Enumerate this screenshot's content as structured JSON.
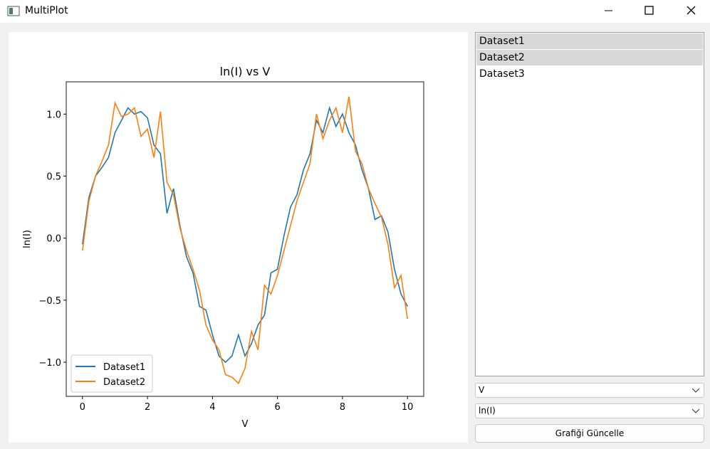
{
  "window": {
    "title": "MultiPlot"
  },
  "chart_data": {
    "type": "line",
    "title": "ln(I) vs V",
    "xlabel": "V",
    "ylabel": "ln(I)",
    "x": [
      0,
      0.2,
      0.4,
      0.6,
      0.8,
      1.0,
      1.2,
      1.4,
      1.6,
      1.8,
      2.0,
      2.2,
      2.4,
      2.6,
      2.8,
      3.0,
      3.2,
      3.4,
      3.6,
      3.8,
      4.0,
      4.2,
      4.4,
      4.6,
      4.8,
      5.0,
      5.2,
      5.4,
      5.6,
      5.8,
      6.0,
      6.2,
      6.4,
      6.6,
      6.8,
      7.0,
      7.2,
      7.4,
      7.6,
      7.8,
      8.0,
      8.2,
      8.4,
      8.6,
      8.8,
      9.0,
      9.2,
      9.4,
      9.6,
      9.8,
      10.0
    ],
    "series": [
      {
        "name": "Dataset1",
        "color": "#1f77b4",
        "values": [
          -0.05,
          0.33,
          0.5,
          0.57,
          0.65,
          0.85,
          0.95,
          1.05,
          1.0,
          1.02,
          0.97,
          0.75,
          0.68,
          0.2,
          0.4,
          0.1,
          -0.15,
          -0.28,
          -0.55,
          -0.58,
          -0.78,
          -0.95,
          -1.0,
          -0.95,
          -0.78,
          -0.95,
          -0.85,
          -0.7,
          -0.62,
          -0.28,
          -0.25,
          0.02,
          0.25,
          0.35,
          0.55,
          0.68,
          0.95,
          0.85,
          1.05,
          0.9,
          1.0,
          0.85,
          0.75,
          0.55,
          0.4,
          0.15,
          0.18,
          0.05,
          -0.25,
          -0.45,
          -0.55
        ]
      },
      {
        "name": "Dataset2",
        "color": "#ff7f0e",
        "values": [
          -0.1,
          0.3,
          0.5,
          0.62,
          0.75,
          1.09,
          0.98,
          1.0,
          1.05,
          0.82,
          0.88,
          0.65,
          1.02,
          0.45,
          0.35,
          0.08,
          -0.1,
          -0.25,
          -0.42,
          -0.7,
          -0.82,
          -0.9,
          -1.1,
          -1.12,
          -1.17,
          -1.05,
          -0.75,
          -0.9,
          -0.38,
          -0.45,
          -0.3,
          -0.1,
          0.1,
          0.3,
          0.45,
          0.6,
          1.0,
          0.8,
          0.95,
          1.05,
          0.85,
          1.14,
          0.7,
          0.6,
          0.4,
          0.28,
          0.17,
          -0.05,
          -0.4,
          -0.3,
          -0.65
        ]
      }
    ],
    "xlim": [
      -0.5,
      10.5
    ],
    "xticks": [
      0,
      2,
      4,
      6,
      8,
      10
    ],
    "ylim": [
      -1.275,
      1.26
    ],
    "yticks": [
      {
        "value": -1.0,
        "label": "−1.0"
      },
      {
        "value": -0.5,
        "label": "−0.5"
      },
      {
        "value": 0.0,
        "label": "0.0"
      },
      {
        "value": 0.5,
        "label": "0.5"
      },
      {
        "value": 1.0,
        "label": "1.0"
      }
    ],
    "legend": "lower left"
  },
  "dataset_list": {
    "items": [
      "Dataset1",
      "Dataset2",
      "Dataset3"
    ],
    "selected": [
      true,
      true,
      false
    ]
  },
  "controls": {
    "x_axis": "V",
    "y_axis": "ln(I)",
    "button": "Grafiği Güncelle"
  }
}
